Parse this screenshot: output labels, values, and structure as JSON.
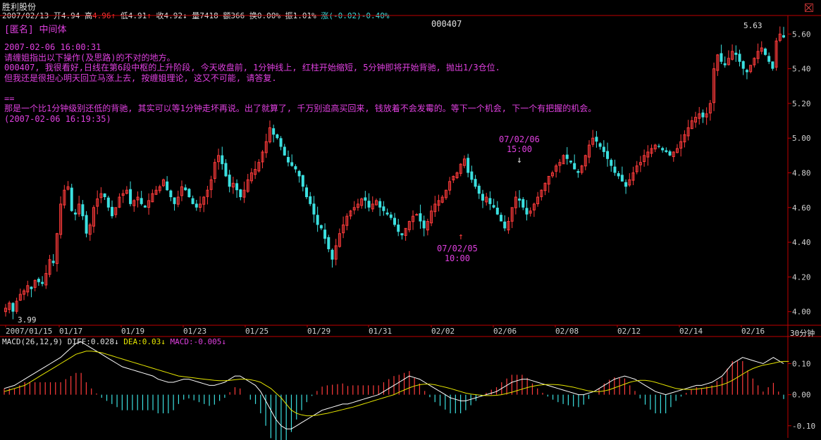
{
  "title": "胜利股份",
  "quote": {
    "date": "2007/02/13",
    "open_label": "开",
    "open": "4.94",
    "high_label": "高",
    "high": "4.96",
    "low_label": "低",
    "low": "4.91",
    "close_label": "收",
    "close": "4.92",
    "volume_label": "量",
    "volume": "7418",
    "amount_label": "额",
    "amount": "366",
    "turnover_label": "换",
    "turnover": "0.00%",
    "amplitude_label": "振",
    "amplitude": "1.01%",
    "change_label": "涨",
    "change": "(-0.02)-0.40%"
  },
  "stock_code": "000407",
  "annotation": {
    "indicator_label": "[匿名] 中间体",
    "lines": [
      "2007-02-06 16:00:31",
      "请缠姐指出以下操作(及思路)的不对的地方。",
      "000407, 我很看好,日线在第6段中枢的上升阶段, 今天收盘前, 1分钟线上, 红柱开始缩短, 5分钟即将开始背驰, 抛出1/3仓位.",
      "但我还是很担心明天回立马涨上去, 按缠姐理论, 这又不可能, 请答复.",
      "",
      "==",
      "那是一个比1分钟级别还低的背驰, 其实可以等1分钟走坏再说。出了就算了, 千万别追高买回来, 钱放着不会发霉的。等下一个机会, 下一个有把握的机会。",
      "(2007-02-06 16:19:35)"
    ]
  },
  "markers": {
    "sell_date": "07/02/06",
    "sell_time": "15:00",
    "buy_date": "07/02/05",
    "buy_time": "10:00",
    "high_label": "5.63",
    "low_label": "3.99"
  },
  "period": "30分钟",
  "macd": {
    "label": "MACD(26,12,9)",
    "diff_label": "DIFF:",
    "diff": "0.028",
    "dea_label": "DEA:",
    "dea": "0.03",
    "macd_label": "MACD:",
    "macd": "-0.005"
  },
  "colors": {
    "up": "#ff3b3b",
    "down": "#3be0e0",
    "diff": "#ffffff",
    "dea": "#e6e600",
    "annotation": "#e040e0"
  },
  "chart_data": [
    {
      "type": "candlestick",
      "title": "000407",
      "period": "30分钟",
      "ylim": [
        3.95,
        5.65
      ],
      "y_ticks": [
        4.0,
        4.2,
        4.4,
        4.6,
        4.8,
        5.0,
        5.2,
        5.4,
        5.6
      ],
      "x_tick_labels": [
        "2007/01/15",
        "01/17",
        "01/19",
        "01/23",
        "01/25",
        "01/29",
        "01/31",
        "02/02",
        "02/06",
        "02/08",
        "02/12",
        "02/14",
        "02/16"
      ],
      "close": [
        4.02,
        4.05,
        4.0,
        4.06,
        4.1,
        4.12,
        4.15,
        4.13,
        4.18,
        4.17,
        4.16,
        4.22,
        4.3,
        4.28,
        4.45,
        4.62,
        4.7,
        4.72,
        4.58,
        4.56,
        4.62,
        4.55,
        4.45,
        4.5,
        4.6,
        4.65,
        4.68,
        4.66,
        4.6,
        4.55,
        4.6,
        4.66,
        4.68,
        4.7,
        4.62,
        4.64,
        4.66,
        4.62,
        4.6,
        4.64,
        4.68,
        4.7,
        4.72,
        4.76,
        4.7,
        4.66,
        4.62,
        4.66,
        4.72,
        4.7,
        4.66,
        4.62,
        4.6,
        4.62,
        4.66,
        4.7,
        4.76,
        4.86,
        4.9,
        4.85,
        4.78,
        4.72,
        4.74,
        4.7,
        4.66,
        4.7,
        4.76,
        4.8,
        4.82,
        4.86,
        4.92,
        4.98,
        5.06,
        5.02,
        5.0,
        4.95,
        4.9,
        4.86,
        4.84,
        4.82,
        4.78,
        4.72,
        4.66,
        4.62,
        4.56,
        4.5,
        4.48,
        4.42,
        4.36,
        4.3,
        4.38,
        4.45,
        4.5,
        4.55,
        4.58,
        4.6,
        4.62,
        4.65,
        4.64,
        4.6,
        4.62,
        4.64,
        4.6,
        4.58,
        4.56,
        4.54,
        4.5,
        4.46,
        4.44,
        4.48,
        4.52,
        4.55,
        4.56,
        4.52,
        4.48,
        4.52,
        4.58,
        4.62,
        4.64,
        4.66,
        4.7,
        4.75,
        4.78,
        4.8,
        4.85,
        4.88,
        4.8,
        4.76,
        4.72,
        4.68,
        4.64,
        4.66,
        4.62,
        4.6,
        4.56,
        4.52,
        4.48,
        4.52,
        4.6,
        4.66,
        4.64,
        4.6,
        4.56,
        4.58,
        4.62,
        4.66,
        4.7,
        4.74,
        4.78,
        4.8,
        4.84,
        4.86,
        4.9,
        4.88,
        4.86,
        4.82,
        4.8,
        4.84,
        4.9,
        4.96,
        5.0,
        4.98,
        4.95,
        4.92,
        4.88,
        4.84,
        4.8,
        4.78,
        4.75,
        4.72,
        4.76,
        4.8,
        4.84,
        4.86,
        4.9,
        4.92,
        4.94,
        4.96,
        4.95,
        4.93,
        4.92,
        4.9,
        4.92,
        4.94,
        4.98,
        5.02,
        5.06,
        5.1,
        5.12,
        5.14,
        5.12,
        5.14,
        5.2,
        5.4,
        5.48,
        5.44,
        5.42,
        5.46,
        5.5,
        5.48,
        5.44,
        5.4,
        5.38,
        5.42,
        5.46,
        5.5,
        5.52,
        5.48,
        5.44,
        5.4,
        5.56,
        5.6,
        5.58
      ]
    },
    {
      "type": "macd",
      "title": "MACD(26,12,9)",
      "ylim": [
        -0.13,
        0.16
      ],
      "y_ticks": [
        -0.1,
        0.0,
        0.1
      ],
      "series": [
        {
          "name": "DIFF",
          "values": [
            0.02,
            0.025,
            0.03,
            0.04,
            0.05,
            0.06,
            0.07,
            0.08,
            0.09,
            0.1,
            0.11,
            0.12,
            0.135,
            0.15,
            0.165,
            0.17,
            0.16,
            0.15,
            0.14,
            0.13,
            0.12,
            0.11,
            0.1,
            0.09,
            0.085,
            0.08,
            0.075,
            0.07,
            0.065,
            0.06,
            0.05,
            0.045,
            0.04,
            0.04,
            0.045,
            0.05,
            0.05,
            0.045,
            0.04,
            0.035,
            0.03,
            0.03,
            0.035,
            0.04,
            0.05,
            0.06,
            0.06,
            0.05,
            0.04,
            0.03,
            0.01,
            -0.02,
            -0.05,
            -0.08,
            -0.1,
            -0.11,
            -0.11,
            -0.1,
            -0.09,
            -0.08,
            -0.07,
            -0.06,
            -0.05,
            -0.045,
            -0.04,
            -0.035,
            -0.03,
            -0.03,
            -0.025,
            -0.02,
            -0.015,
            -0.01,
            -0.005,
            0.0,
            0.01,
            0.02,
            0.03,
            0.04,
            0.05,
            0.06,
            0.055,
            0.05,
            0.04,
            0.03,
            0.02,
            0.01,
            0.0,
            -0.01,
            -0.015,
            -0.02,
            -0.02,
            -0.015,
            -0.01,
            -0.005,
            0.0,
            0.005,
            0.01,
            0.02,
            0.03,
            0.04,
            0.045,
            0.05,
            0.05,
            0.045,
            0.04,
            0.035,
            0.03,
            0.025,
            0.02,
            0.015,
            0.01,
            0.005,
            0.0,
            0.0,
            0.005,
            0.01,
            0.02,
            0.03,
            0.04,
            0.05,
            0.055,
            0.06,
            0.055,
            0.05,
            0.04,
            0.03,
            0.02,
            0.01,
            0.005,
            0.0,
            0.005,
            0.01,
            0.015,
            0.02,
            0.025,
            0.03,
            0.03,
            0.035,
            0.04,
            0.05,
            0.06,
            0.08,
            0.1,
            0.11,
            0.12,
            0.115,
            0.11,
            0.105,
            0.1,
            0.11,
            0.12,
            0.11,
            0.1
          ]
        },
        {
          "name": "DEA",
          "values": [
            0.01,
            0.015,
            0.02,
            0.025,
            0.03,
            0.04,
            0.05,
            0.06,
            0.07,
            0.08,
            0.09,
            0.1,
            0.11,
            0.12,
            0.13,
            0.135,
            0.14,
            0.14,
            0.138,
            0.135,
            0.13,
            0.125,
            0.12,
            0.115,
            0.11,
            0.105,
            0.1,
            0.095,
            0.09,
            0.085,
            0.08,
            0.075,
            0.07,
            0.065,
            0.06,
            0.058,
            0.056,
            0.054,
            0.052,
            0.05,
            0.048,
            0.046,
            0.045,
            0.045,
            0.046,
            0.048,
            0.05,
            0.05,
            0.048,
            0.045,
            0.04,
            0.03,
            0.02,
            0.005,
            -0.01,
            -0.03,
            -0.05,
            -0.06,
            -0.065,
            -0.068,
            -0.068,
            -0.066,
            -0.063,
            -0.06,
            -0.056,
            -0.052,
            -0.048,
            -0.044,
            -0.04,
            -0.035,
            -0.03,
            -0.025,
            -0.02,
            -0.015,
            -0.01,
            -0.005,
            0.0,
            0.008,
            0.015,
            0.022,
            0.028,
            0.032,
            0.034,
            0.034,
            0.032,
            0.028,
            0.024,
            0.02,
            0.015,
            0.01,
            0.005,
            0.002,
            0.0,
            -0.002,
            -0.003,
            -0.003,
            -0.002,
            0.0,
            0.004,
            0.008,
            0.013,
            0.018,
            0.023,
            0.027,
            0.03,
            0.032,
            0.033,
            0.033,
            0.032,
            0.03,
            0.027,
            0.024,
            0.02,
            0.016,
            0.012,
            0.01,
            0.01,
            0.012,
            0.016,
            0.022,
            0.028,
            0.034,
            0.04,
            0.044,
            0.046,
            0.046,
            0.044,
            0.04,
            0.035,
            0.03,
            0.025,
            0.02,
            0.018,
            0.017,
            0.017,
            0.018,
            0.02,
            0.022,
            0.025,
            0.028,
            0.032,
            0.038,
            0.046,
            0.056,
            0.066,
            0.076,
            0.084,
            0.09,
            0.095,
            0.098,
            0.101,
            0.105,
            0.107,
            0.107
          ]
        }
      ]
    }
  ]
}
